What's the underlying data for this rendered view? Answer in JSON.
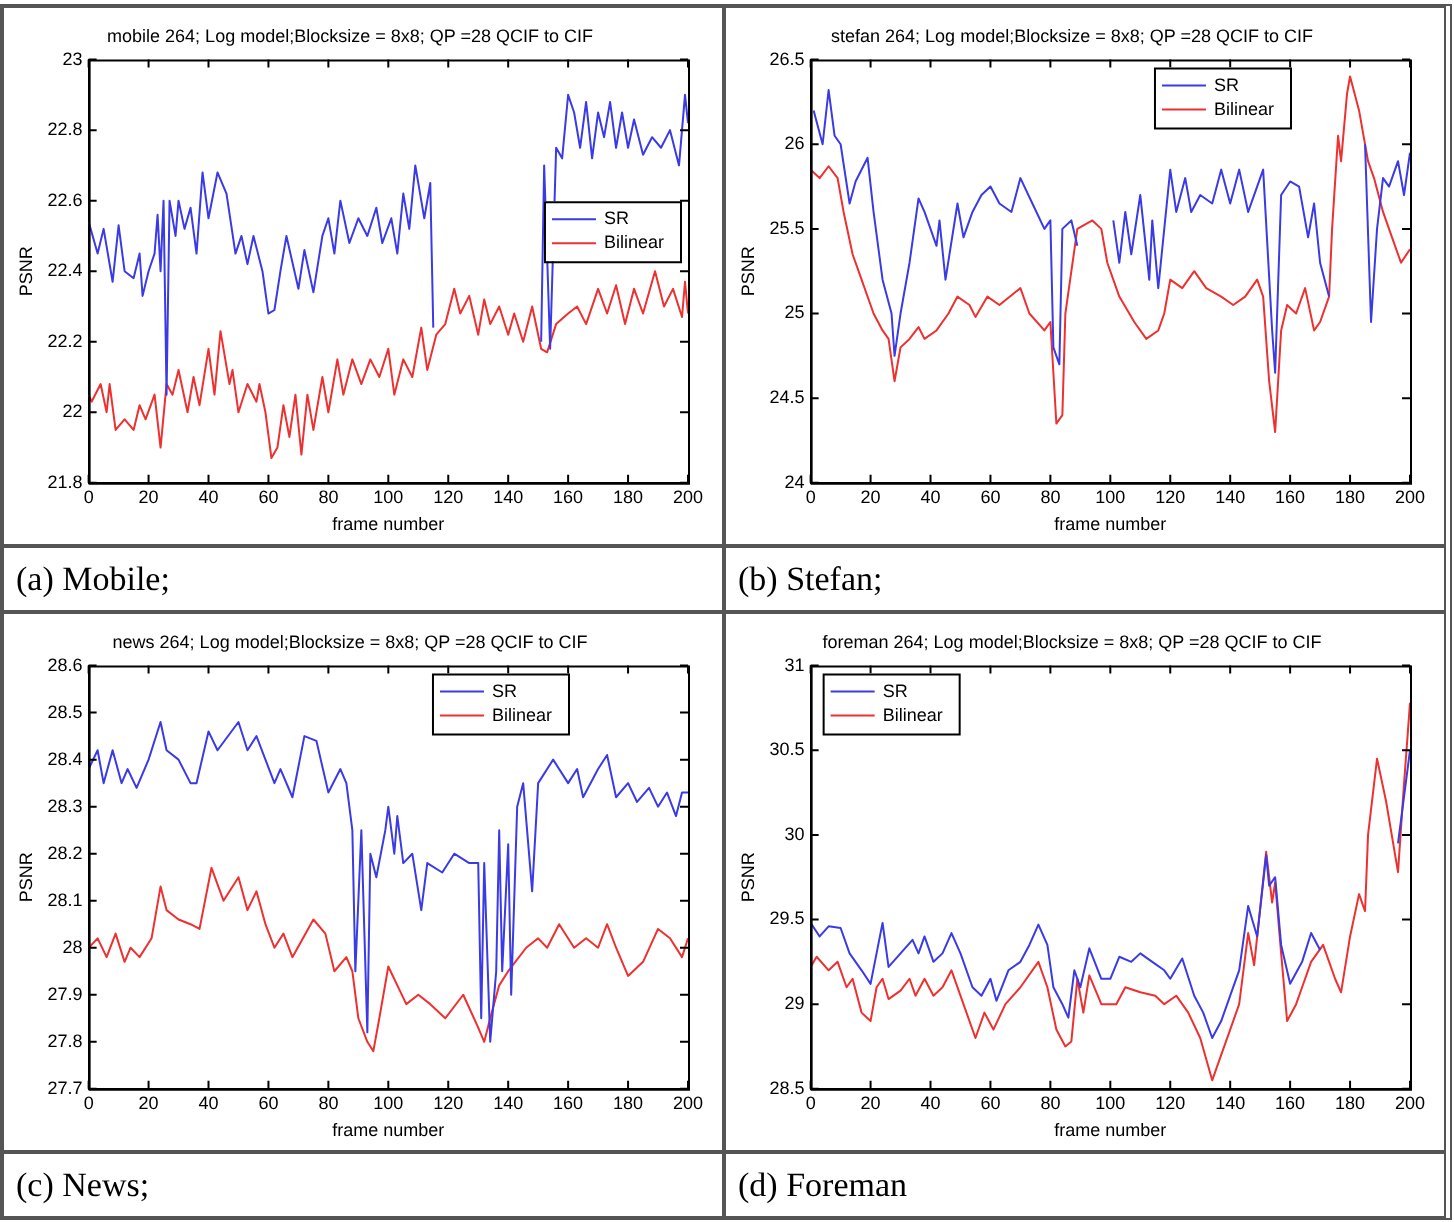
{
  "chart_data": [
    {
      "type": "line",
      "title": "mobile 264; Log model;Blocksize = 8x8; QP =28 QCIF to CIF",
      "xlabel": "frame number",
      "ylabel": "PSNR",
      "xlim": [
        0,
        200
      ],
      "xticks": [
        0,
        20,
        40,
        60,
        80,
        100,
        120,
        140,
        160,
        180,
        200
      ],
      "ylim": [
        21.8,
        23
      ],
      "yticks": [
        21.8,
        22,
        22.2,
        22.4,
        22.6,
        22.8,
        23
      ],
      "grid": false,
      "legend": "right",
      "marker": "none",
      "line_style": "solid",
      "annotations": [
        "(a) Mobile;"
      ],
      "series": [
        {
          "name": "SR",
          "color": "#3a3ae6",
          "x": [
            0,
            3,
            5,
            8,
            10,
            12,
            15,
            17,
            18,
            20,
            22,
            23,
            24,
            25,
            26,
            27,
            29,
            30,
            32,
            34,
            36,
            38,
            40,
            43,
            46,
            49,
            51,
            53,
            55,
            58,
            60,
            62,
            64,
            66,
            70,
            72,
            75,
            78,
            80,
            82,
            84,
            87,
            90,
            93,
            96,
            98,
            101,
            103,
            105,
            107,
            109,
            112,
            114,
            115,
            133,
            151,
            152,
            154,
            156,
            158,
            160,
            162,
            164,
            166,
            168,
            170,
            172,
            174,
            176,
            178,
            180,
            182,
            185,
            188,
            191,
            194,
            197,
            199,
            200
          ],
          "values": [
            22.54,
            22.45,
            22.52,
            22.37,
            22.53,
            22.4,
            22.38,
            22.45,
            22.33,
            22.4,
            22.45,
            22.56,
            22.4,
            22.6,
            22.05,
            22.6,
            22.5,
            22.6,
            22.52,
            22.58,
            22.45,
            22.68,
            22.55,
            22.68,
            22.62,
            22.45,
            22.5,
            22.42,
            22.5,
            22.4,
            22.28,
            22.29,
            22.4,
            22.5,
            22.35,
            22.46,
            22.34,
            22.5,
            22.55,
            22.45,
            22.6,
            22.48,
            22.55,
            22.5,
            22.58,
            22.48,
            22.55,
            22.45,
            22.62,
            22.52,
            22.7,
            22.55,
            22.65,
            22.24,
            null,
            22.2,
            22.7,
            22.18,
            22.75,
            22.72,
            22.9,
            22.85,
            22.75,
            22.88,
            22.72,
            22.85,
            22.78,
            22.88,
            22.75,
            22.85,
            22.75,
            22.83,
            22.73,
            22.78,
            22.75,
            22.8,
            22.7,
            22.9,
            22.82
          ]
        },
        {
          "name": "Bilinear",
          "color": "#ee3030",
          "x": [
            0,
            1,
            4,
            6,
            7,
            9,
            12,
            15,
            17,
            19,
            22,
            24,
            26,
            28,
            30,
            33,
            35,
            37,
            40,
            42,
            44,
            47,
            48,
            50,
            53,
            56,
            57,
            59,
            61,
            63,
            65,
            67,
            69,
            71,
            73,
            75,
            78,
            80,
            83,
            85,
            88,
            91,
            94,
            97,
            100,
            102,
            105,
            108,
            111,
            113,
            116,
            119,
            122,
            124,
            127,
            130,
            132,
            134,
            137,
            140,
            142,
            145,
            148,
            151,
            153,
            156,
            160,
            163,
            166,
            170,
            173,
            176,
            179,
            182,
            185,
            189,
            192,
            195,
            198,
            199,
            200
          ],
          "values": [
            22.05,
            22.03,
            22.08,
            22,
            22.08,
            21.95,
            21.98,
            21.95,
            22.02,
            21.98,
            22.05,
            21.9,
            22.08,
            22.05,
            22.12,
            22,
            22.1,
            22.02,
            22.18,
            22.05,
            22.23,
            22.08,
            22.12,
            22,
            22.08,
            22.03,
            22.08,
            22,
            21.87,
            21.9,
            22.02,
            21.93,
            22.05,
            21.88,
            22.05,
            21.95,
            22.1,
            22,
            22.15,
            22.05,
            22.15,
            22.08,
            22.15,
            22.1,
            22.18,
            22.05,
            22.15,
            22.1,
            22.24,
            22.12,
            22.22,
            22.25,
            22.35,
            22.28,
            22.33,
            22.22,
            22.32,
            22.25,
            22.3,
            22.22,
            22.28,
            22.2,
            22.3,
            22.18,
            22.17,
            22.25,
            22.28,
            22.3,
            22.25,
            22.35,
            22.28,
            22.36,
            22.25,
            22.35,
            22.28,
            22.4,
            22.3,
            22.35,
            22.27,
            22.37,
            22.28
          ]
        }
      ]
    },
    {
      "type": "line",
      "title": "stefan 264; Log model;Blocksize = 8x8; QP =28 QCIF to CIF",
      "xlabel": "frame number",
      "ylabel": "PSNR",
      "xlim": [
        0,
        200
      ],
      "xticks": [
        0,
        20,
        40,
        60,
        80,
        100,
        120,
        140,
        160,
        180,
        200
      ],
      "ylim": [
        24,
        26.5
      ],
      "yticks": [
        24,
        24.5,
        25,
        25.5,
        26,
        26.5
      ],
      "grid": false,
      "legend": "top right",
      "marker": "none",
      "line_style": "solid",
      "annotations": [
        "(b) Stefan;"
      ],
      "series": [
        {
          "name": "SR",
          "color": "#3a3ae6",
          "x": [
            1,
            4,
            6,
            8,
            10,
            13,
            15,
            19,
            21,
            24,
            27,
            28,
            30,
            33,
            36,
            38,
            42,
            43,
            45,
            49,
            51,
            54,
            57,
            60,
            63,
            67,
            70,
            74,
            78,
            80,
            81,
            83,
            84,
            87,
            89,
            95,
            101,
            103,
            105,
            107,
            110,
            113,
            114,
            116,
            120,
            122,
            125,
            127,
            130,
            134,
            137,
            140,
            143,
            146,
            151,
            154,
            155,
            157,
            160,
            163,
            166,
            168,
            170,
            173,
            179,
            185,
            187,
            189,
            191,
            193,
            196,
            198,
            200
          ],
          "values": [
            26.2,
            26,
            26.32,
            26.05,
            26,
            25.65,
            25.78,
            25.92,
            25.6,
            25.2,
            25,
            24.75,
            25,
            25.3,
            25.68,
            25.6,
            25.4,
            25.55,
            25.2,
            25.65,
            25.45,
            25.6,
            25.7,
            25.75,
            25.65,
            25.6,
            25.8,
            25.65,
            25.5,
            25.55,
            24.8,
            24.7,
            25.5,
            25.55,
            25.4,
            null,
            25.55,
            25.3,
            25.6,
            25.35,
            25.7,
            25.2,
            25.55,
            25.15,
            25.85,
            25.6,
            25.8,
            25.6,
            25.7,
            25.65,
            25.85,
            25.65,
            25.85,
            25.6,
            25.85,
            24.9,
            24.65,
            25.7,
            25.78,
            25.75,
            25.45,
            25.65,
            25.3,
            25.1,
            null,
            26,
            24.95,
            25.5,
            25.8,
            25.75,
            25.9,
            25.7,
            25.95
          ]
        },
        {
          "name": "Bilinear",
          "color": "#ee3030",
          "x": [
            0,
            3,
            6,
            9,
            11,
            14,
            17,
            21,
            24,
            26,
            28,
            30,
            33,
            36,
            38,
            42,
            46,
            49,
            53,
            55,
            59,
            63,
            70,
            73,
            78,
            80,
            82,
            84,
            85,
            87,
            89,
            94,
            97,
            99,
            101,
            103,
            108,
            112,
            116,
            118,
            120,
            124,
            128,
            132,
            137,
            141,
            145,
            149,
            151,
            153,
            155,
            157,
            159,
            162,
            165,
            168,
            170,
            173,
            174,
            176,
            177,
            179,
            180,
            183,
            184,
            186,
            188,
            191,
            194,
            197,
            200
          ],
          "values": [
            25.85,
            25.8,
            25.87,
            25.8,
            25.6,
            25.35,
            25.2,
            25,
            24.9,
            24.85,
            24.6,
            24.8,
            24.85,
            24.92,
            24.85,
            24.9,
            25,
            25.1,
            25.05,
            24.98,
            25.1,
            25.05,
            25.15,
            25,
            24.9,
            24.95,
            24.35,
            24.4,
            25,
            25.25,
            25.5,
            25.55,
            25.5,
            25.3,
            25.2,
            25.1,
            24.95,
            24.85,
            24.9,
            25,
            25.2,
            25.15,
            25.25,
            25.15,
            25.1,
            25.05,
            25.1,
            25.2,
            25.1,
            24.6,
            24.3,
            24.9,
            25.05,
            25,
            25.15,
            24.9,
            24.95,
            25.1,
            25.5,
            26.05,
            25.9,
            26.3,
            26.4,
            26.2,
            26.1,
            25.9,
            25.8,
            25.6,
            25.45,
            25.3,
            25.38
          ]
        }
      ]
    },
    {
      "type": "line",
      "title": "news 264; Log model;Blocksize = 8x8; QP =28 QCIF to CIF",
      "xlabel": "frame number",
      "ylabel": "PSNR",
      "xlim": [
        0,
        200
      ],
      "xticks": [
        0,
        20,
        40,
        60,
        80,
        100,
        120,
        140,
        160,
        180,
        200
      ],
      "ylim": [
        27.7,
        28.6
      ],
      "yticks": [
        27.7,
        27.8,
        27.9,
        28,
        28.1,
        28.2,
        28.3,
        28.4,
        28.5,
        28.6
      ],
      "grid": false,
      "legend": "top right",
      "marker": "none",
      "line_style": "solid",
      "annotations": [
        "(c) News;"
      ],
      "series": [
        {
          "name": "SR",
          "color": "#3a3ae6",
          "x": [
            0,
            3,
            5,
            8,
            11,
            13,
            16,
            20,
            24,
            26,
            30,
            34,
            36,
            40,
            43,
            50,
            53,
            56,
            59,
            62,
            64,
            68,
            72,
            76,
            80,
            84,
            86,
            88,
            89,
            91,
            93,
            94,
            96,
            99,
            100,
            102,
            103,
            105,
            108,
            111,
            113,
            118,
            122,
            127,
            130,
            131,
            132,
            134,
            136,
            137,
            138,
            140,
            141,
            143,
            145,
            148,
            150,
            155,
            160,
            163,
            165,
            170,
            173,
            176,
            180,
            183,
            187,
            190,
            193,
            196,
            198,
            200
          ],
          "values": [
            28.38,
            28.42,
            28.35,
            28.42,
            28.35,
            28.38,
            28.34,
            28.4,
            28.48,
            28.42,
            28.4,
            28.35,
            28.35,
            28.46,
            28.42,
            28.48,
            28.42,
            28.45,
            28.4,
            28.35,
            28.38,
            28.32,
            28.45,
            28.44,
            28.33,
            28.38,
            28.35,
            28.25,
            27.95,
            28.25,
            27.82,
            28.2,
            28.15,
            28.25,
            28.3,
            28.2,
            28.28,
            28.18,
            28.2,
            28.08,
            28.18,
            28.16,
            28.2,
            28.18,
            28.18,
            27.85,
            28.18,
            27.8,
            27.95,
            28.25,
            27.95,
            28.22,
            27.9,
            28.3,
            28.35,
            28.12,
            28.35,
            28.4,
            28.35,
            28.38,
            28.32,
            28.38,
            28.41,
            28.32,
            28.35,
            28.31,
            28.34,
            28.3,
            28.33,
            28.28,
            28.33,
            28.33
          ]
        },
        {
          "name": "Bilinear",
          "color": "#ee3030",
          "x": [
            0,
            3,
            6,
            9,
            12,
            14,
            17,
            21,
            24,
            26,
            30,
            34,
            37,
            41,
            45,
            50,
            53,
            56,
            59,
            62,
            65,
            68,
            75,
            79,
            82,
            86,
            88,
            90,
            93,
            95,
            97,
            100,
            103,
            106,
            110,
            114,
            119,
            125,
            130,
            132,
            134,
            137,
            140,
            146,
            150,
            153,
            157,
            162,
            166,
            170,
            173,
            176,
            180,
            185,
            190,
            194,
            198,
            200
          ],
          "values": [
            28,
            28.02,
            27.98,
            28.03,
            27.97,
            28,
            27.98,
            28.02,
            28.13,
            28.08,
            28.06,
            28.05,
            28.04,
            28.17,
            28.1,
            28.15,
            28.08,
            28.12,
            28.05,
            28,
            28.03,
            27.98,
            28.06,
            28.03,
            27.95,
            27.98,
            27.95,
            27.85,
            27.8,
            27.78,
            27.85,
            27.96,
            27.92,
            27.88,
            27.9,
            27.88,
            27.85,
            27.9,
            27.83,
            27.8,
            27.85,
            27.92,
            27.95,
            28,
            28.02,
            28,
            28.05,
            28,
            28.02,
            28,
            28.05,
            28,
            27.94,
            27.97,
            28.04,
            28.02,
            27.98,
            28.02
          ]
        }
      ]
    },
    {
      "type": "line",
      "title": "foreman 264; Log model;Blocksize = 8x8; QP =28 QCIF to CIF",
      "xlabel": "frame number",
      "ylabel": "PSNR",
      "xlim": [
        0,
        200
      ],
      "xticks": [
        0,
        20,
        40,
        60,
        80,
        100,
        120,
        140,
        160,
        180,
        200
      ],
      "ylim": [
        28.5,
        31
      ],
      "yticks": [
        28.5,
        29,
        29.5,
        30,
        30.5,
        31
      ],
      "grid": false,
      "legend": "top left",
      "marker": "none",
      "line_style": "solid",
      "annotations": [
        "(d) Foreman"
      ],
      "series": [
        {
          "name": "SR",
          "color": "#3a3ae6",
          "x": [
            0,
            3,
            6,
            10,
            13,
            17,
            20,
            22,
            24,
            26,
            30,
            34,
            36,
            38,
            41,
            44,
            47,
            50,
            54,
            57,
            60,
            62,
            66,
            70,
            73,
            76,
            79,
            81,
            84,
            86,
            88,
            90,
            93,
            97,
            100,
            103,
            107,
            110,
            114,
            118,
            120,
            124,
            128,
            131,
            134,
            137,
            140,
            143,
            146,
            149,
            152,
            153,
            155,
            157,
            160,
            164,
            167,
            170,
            183,
            196,
            200
          ],
          "values": [
            29.48,
            29.4,
            29.46,
            29.45,
            29.3,
            29.2,
            29.12,
            29.3,
            29.48,
            29.22,
            29.3,
            29.38,
            29.3,
            29.4,
            29.25,
            29.3,
            29.42,
            29.3,
            29.1,
            29.05,
            29.15,
            29.02,
            29.2,
            29.25,
            29.35,
            29.47,
            29.35,
            29.1,
            29,
            28.92,
            29.2,
            29.1,
            29.33,
            29.15,
            29.15,
            29.28,
            29.25,
            29.3,
            29.25,
            29.2,
            29.15,
            29.27,
            29.05,
            28.95,
            28.8,
            28.9,
            29.05,
            29.2,
            29.58,
            29.4,
            29.88,
            29.7,
            29.75,
            29.35,
            29.12,
            29.25,
            29.42,
            29.32,
            null,
            29.95,
            30.5
          ]
        },
        {
          "name": "Bilinear",
          "color": "#ee3030",
          "x": [
            0,
            2,
            6,
            9,
            12,
            14,
            17,
            20,
            22,
            24,
            26,
            30,
            33,
            35,
            38,
            41,
            44,
            47,
            51,
            55,
            58,
            61,
            65,
            70,
            76,
            79,
            82,
            85,
            87,
            89,
            91,
            93,
            97,
            102,
            105,
            110,
            115,
            118,
            122,
            126,
            130,
            134,
            137,
            140,
            143,
            146,
            148,
            152,
            154,
            155,
            157,
            159,
            162,
            164,
            167,
            171,
            175,
            177,
            180,
            183,
            185,
            186,
            189,
            192,
            196,
            198,
            200
          ],
          "values": [
            29.22,
            29.28,
            29.2,
            29.25,
            29.1,
            29.15,
            28.95,
            28.9,
            29.1,
            29.15,
            29.03,
            29.08,
            29.15,
            29.05,
            29.15,
            29.05,
            29.1,
            29.2,
            29,
            28.8,
            28.95,
            28.85,
            29,
            29.1,
            29.25,
            29.1,
            28.85,
            28.75,
            28.78,
            29.15,
            28.95,
            29.17,
            29,
            29,
            29.1,
            29.07,
            29.05,
            29,
            29.05,
            28.95,
            28.8,
            28.55,
            28.7,
            28.85,
            29,
            29.42,
            29.23,
            29.9,
            29.6,
            29.72,
            29.3,
            28.9,
            29,
            29.1,
            29.25,
            29.35,
            29.15,
            29.07,
            29.4,
            29.65,
            29.55,
            30,
            30.45,
            30.2,
            29.78,
            30.3,
            30.78
          ]
        }
      ]
    }
  ]
}
